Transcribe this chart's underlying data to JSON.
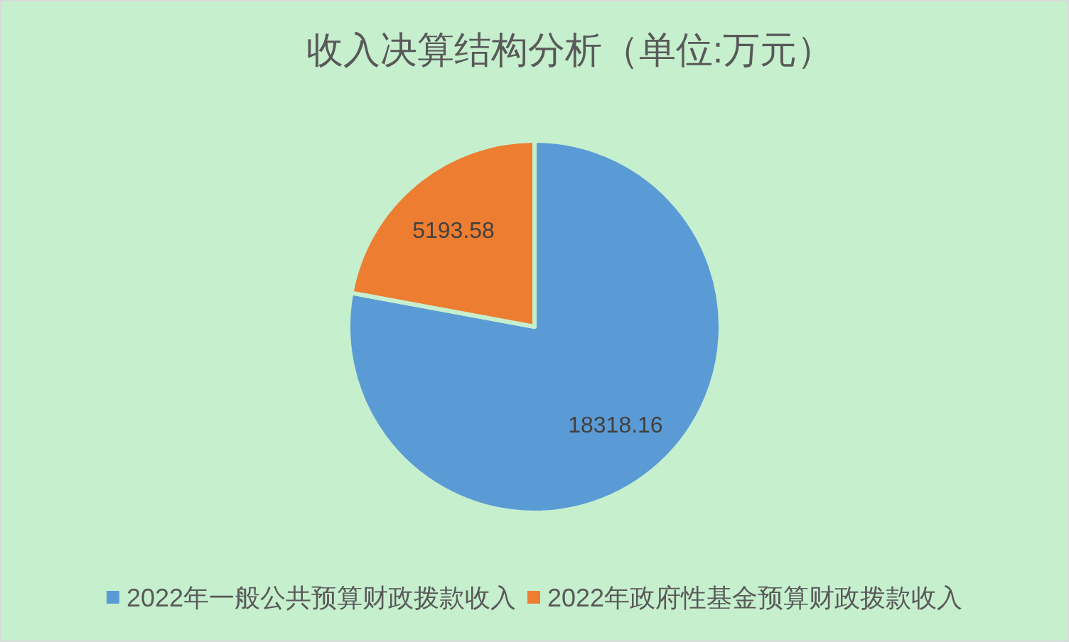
{
  "chart_data": {
    "type": "pie",
    "title": "收入决算结构分析（单位:万元）",
    "categories": [
      "2022年一般公共预算财政拨款收入",
      "2022年政府性基金预算财政拨款收入"
    ],
    "values": [
      18318.16,
      5193.58
    ],
    "colors": [
      "#5b9bd5",
      "#ed7d31"
    ],
    "data_labels": true,
    "legend": "bottom"
  }
}
